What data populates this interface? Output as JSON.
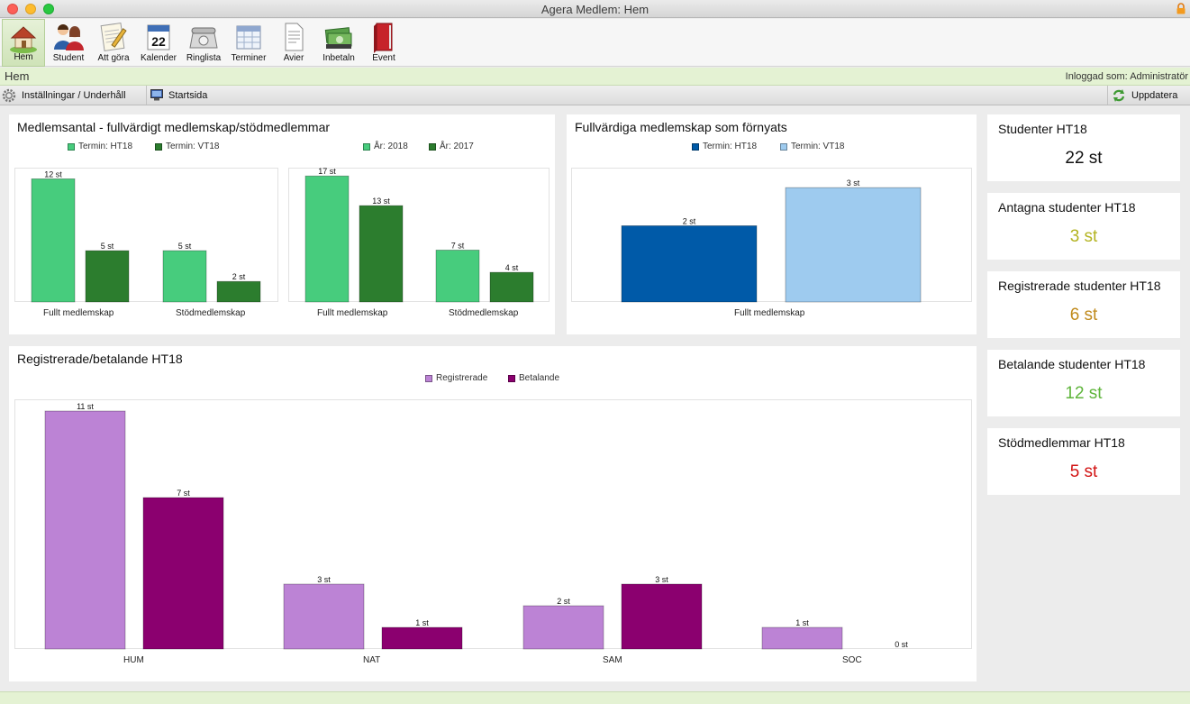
{
  "window": {
    "title": "Agera Medlem: Hem"
  },
  "toolbar": {
    "buttons": [
      {
        "label": "Hem",
        "icon": "house-icon"
      },
      {
        "label": "Student",
        "icon": "people-icon"
      },
      {
        "label": "Att göra",
        "icon": "notepad-icon"
      },
      {
        "label": "Kalender",
        "icon": "calendar-icon"
      },
      {
        "label": "Ringlista",
        "icon": "phone-icon"
      },
      {
        "label": "Terminer",
        "icon": "grid-calendar-icon"
      },
      {
        "label": "Avier",
        "icon": "document-icon"
      },
      {
        "label": "Inbetaln",
        "icon": "money-icon"
      },
      {
        "label": "Event",
        "icon": "red-book-icon"
      }
    ],
    "calendar_day": "22"
  },
  "breadcrumb": {
    "current": "Hem",
    "login_text": "Inloggad som: Administratör"
  },
  "subbar": {
    "settings_label": "Inställningar / Underhåll",
    "start_label": "Startsida",
    "update_label": "Uppdatera"
  },
  "panels": {
    "members": {
      "title": "Medlemsantal - fullvärdigt medlemskap/stödmedlemmar",
      "legend_left": [
        "Termin: HT18",
        "Termin: VT18"
      ],
      "legend_right": [
        "År: 2018",
        "År: 2017"
      ]
    },
    "renewed": {
      "title": "Fullvärdiga medlemskap som förnyats",
      "legend": [
        "Termin: HT18",
        "Termin: VT18"
      ]
    },
    "registered": {
      "title": "Registrerade/betalande HT18",
      "legend": [
        "Registrerade",
        "Betalande"
      ]
    }
  },
  "colors": {
    "light_green": "#47cc7d",
    "dark_green": "#2c7d2e",
    "dark_blue": "#005aa8",
    "light_blue": "#9ecbef",
    "lilac": "#bc83d5",
    "purple": "#8b006f"
  },
  "chart_data": [
    {
      "type": "bar",
      "categories": [
        "Fullt medlemskap",
        "Stödmedlemskap"
      ],
      "series": [
        {
          "name": "Termin: HT18",
          "values": [
            12,
            5
          ]
        },
        {
          "name": "Termin: VT18",
          "values": [
            5,
            2
          ]
        }
      ],
      "data_labels": [
        [
          "12 st",
          "5 st"
        ],
        [
          "5 st",
          "2 st"
        ]
      ],
      "ylim": [
        0,
        13
      ]
    },
    {
      "type": "bar",
      "categories": [
        "Fullt medlemskap",
        "Stödmedlemskap"
      ],
      "series": [
        {
          "name": "År: 2018",
          "values": [
            17,
            7
          ]
        },
        {
          "name": "År: 2017",
          "values": [
            13,
            4
          ]
        }
      ],
      "data_labels": [
        [
          "17 st",
          "7 st"
        ],
        [
          "13 st",
          "4 st"
        ]
      ],
      "ylim": [
        0,
        18
      ]
    },
    {
      "type": "bar",
      "categories": [
        "Fullt medlemskap"
      ],
      "series": [
        {
          "name": "Termin: HT18",
          "values": [
            2
          ]
        },
        {
          "name": "Termin: VT18",
          "values": [
            3
          ]
        }
      ],
      "data_labels": [
        [
          "2 st"
        ],
        [
          "3 st"
        ]
      ],
      "ylim": [
        0,
        3.5
      ]
    },
    {
      "type": "bar",
      "categories": [
        "HUM",
        "NAT",
        "SAM",
        "SOC"
      ],
      "series": [
        {
          "name": "Registrerade",
          "values": [
            11,
            3,
            2,
            1
          ]
        },
        {
          "name": "Betalande",
          "values": [
            7,
            1,
            3,
            0
          ]
        }
      ],
      "data_labels": [
        [
          "11 st",
          "3 st",
          "2 st",
          "1 st"
        ],
        [
          "7 st",
          "1 st",
          "3 st",
          "0 st"
        ]
      ],
      "ylim": [
        0,
        11.5
      ]
    }
  ],
  "stats": [
    {
      "title": "Studenter HT18",
      "value": "22 st",
      "color": "#111111"
    },
    {
      "title": "Antagna studenter HT18",
      "value": "3 st",
      "color": "#b3b320"
    },
    {
      "title": "Registrerade studenter  HT18",
      "value": "6 st",
      "color": "#c08a1c"
    },
    {
      "title": "Betalande studenter HT18",
      "value": "12 st",
      "color": "#5fb53c"
    },
    {
      "title": "Stödmedlemmar HT18",
      "value": "5 st",
      "color": "#d21414"
    }
  ]
}
